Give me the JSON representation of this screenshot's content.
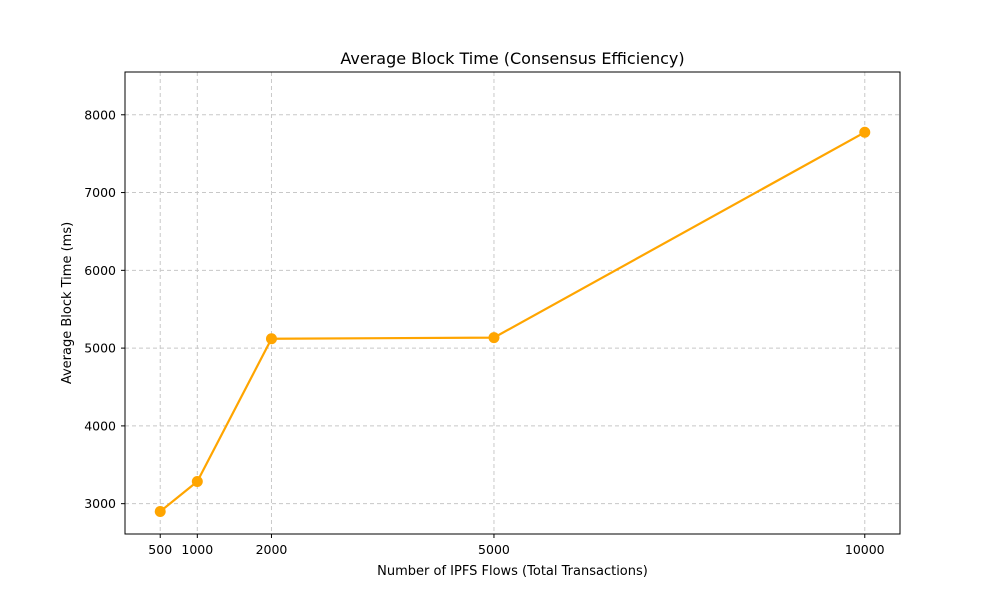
{
  "chart_data": {
    "type": "line",
    "title": "Average Block Time (Consensus Efficiency)",
    "xlabel": "Number of IPFS Flows (Total Transactions)",
    "ylabel": "Average Block Time (ms)",
    "x": [
      500,
      1000,
      2000,
      5000,
      10000
    ],
    "series": [
      {
        "values": [
          2900,
          3285,
          5120,
          5135,
          7775
        ],
        "color": "#ffa500",
        "marker": "circle"
      }
    ],
    "xticks": [
      "500",
      "1000",
      "2000",
      "5000",
      "10000"
    ],
    "yticks": [
      "3000",
      "4000",
      "5000",
      "6000",
      "7000",
      "8000"
    ],
    "xlim": [
      25,
      10475
    ],
    "ylim": [
      2610,
      8550
    ],
    "grid": true,
    "legend": "none"
  }
}
